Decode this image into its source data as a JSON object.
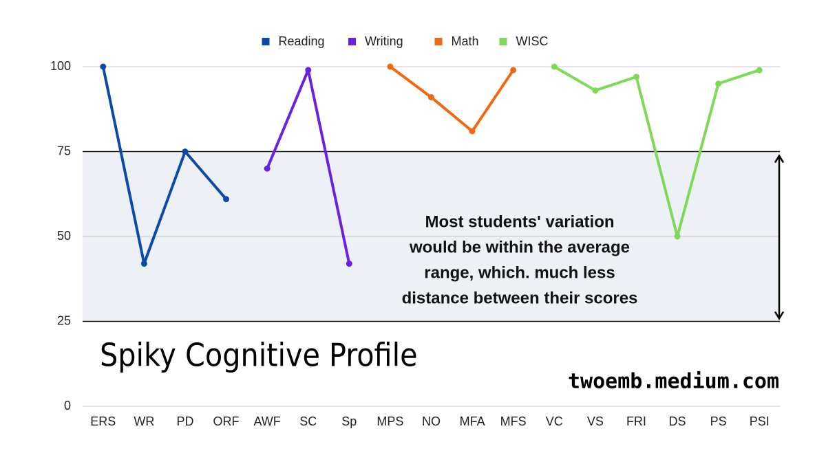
{
  "chart_data": {
    "type": "line",
    "title": "Spiky Cognitive Profile",
    "source": "twoemb.medium.com",
    "categories": [
      "ERS",
      "WR",
      "PD",
      "ORF",
      "AWF",
      "SC",
      "Sp",
      "MPS",
      "NO",
      "MFA",
      "MFS",
      "VC",
      "VS",
      "FRI",
      "DS",
      "PS",
      "PSI"
    ],
    "series": [
      {
        "name": "Reading",
        "color": "#0a4aab",
        "values": [
          100,
          42,
          75,
          61,
          null,
          null,
          null,
          null,
          null,
          null,
          null,
          null,
          null,
          null,
          null,
          null,
          null
        ]
      },
      {
        "name": "Writing",
        "color": "#6a21e0",
        "values": [
          null,
          null,
          null,
          null,
          70,
          99,
          42,
          null,
          null,
          null,
          null,
          null,
          null,
          null,
          null,
          null,
          null
        ]
      },
      {
        "name": "Math",
        "color": "#f0680f",
        "values": [
          null,
          null,
          null,
          null,
          null,
          null,
          null,
          100,
          91,
          81,
          99,
          null,
          null,
          null,
          null,
          null,
          null
        ]
      },
      {
        "name": "WISC",
        "color": "#7ed957",
        "values": [
          null,
          null,
          null,
          null,
          null,
          null,
          null,
          null,
          null,
          null,
          null,
          100,
          93,
          97,
          50,
          95,
          99
        ]
      }
    ],
    "ylim": [
      0,
      100
    ],
    "yticks": [
      0,
      25,
      50,
      75,
      100
    ],
    "grid": true,
    "legend": "top",
    "annotation": {
      "range": [
        25,
        75
      ],
      "color": "#edf0f5",
      "text": [
        "Most students' variation",
        "would be within the average",
        "range, which. much less",
        "distance between their scores"
      ]
    }
  }
}
